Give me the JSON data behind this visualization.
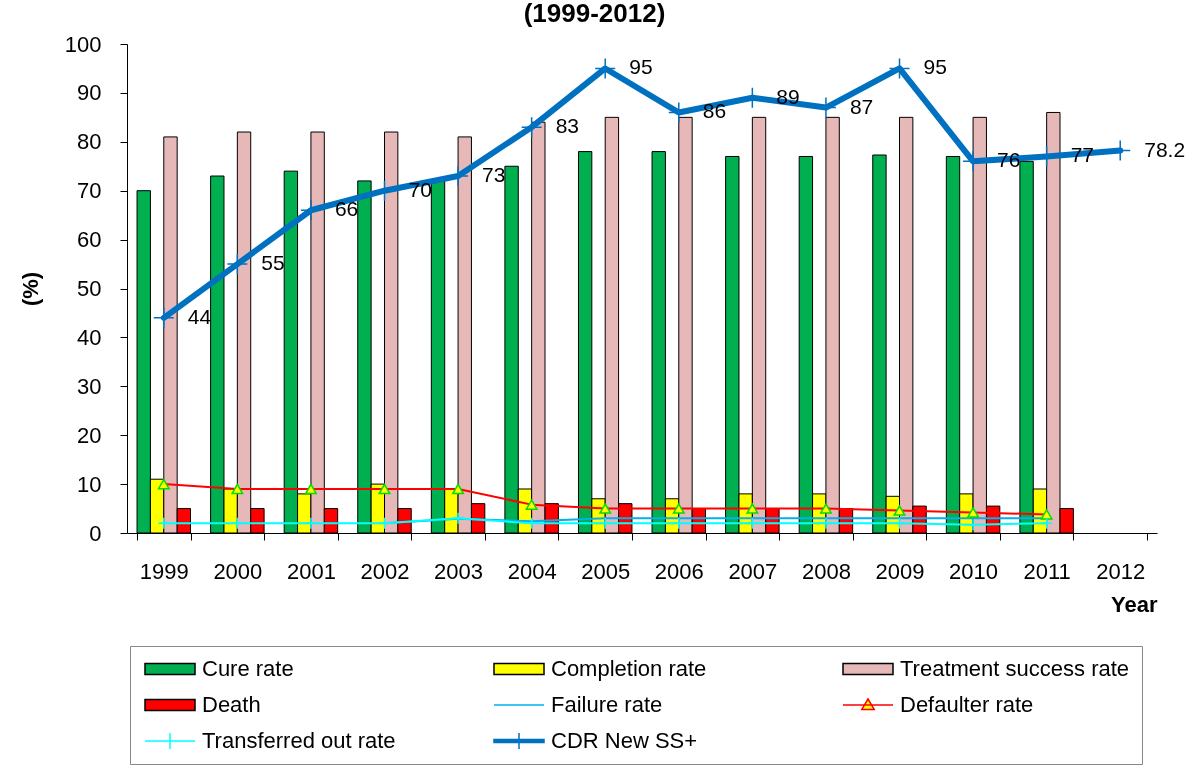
{
  "chart_data": {
    "type": "bar",
    "title": "(1999-2012)",
    "xlabel": "Year",
    "ylabel": "(%)",
    "categories": [
      "1999",
      "2000",
      "2001",
      "2002",
      "2003",
      "2004",
      "2005",
      "2006",
      "2007",
      "2008",
      "2009",
      "2010",
      "2011",
      "2012"
    ],
    "ylim": [
      0,
      100
    ],
    "yticks": [
      0,
      10,
      20,
      30,
      40,
      50,
      60,
      70,
      80,
      90,
      100
    ],
    "legend": "bottom",
    "series": [
      {
        "name": "Cure rate",
        "color": "#00b050",
        "values": [
          70,
          73,
          74,
          72,
          72,
          75,
          78,
          78,
          77,
          77,
          77.3,
          77,
          76,
          null
        ]
      },
      {
        "name": "Completion rate",
        "color": "#ffff00",
        "values": [
          11,
          9,
          8,
          10,
          9,
          9,
          7,
          7,
          8,
          8,
          7.5,
          8,
          9,
          null
        ]
      },
      {
        "name": "Treatment success rate",
        "color": "#e6b9b8",
        "values": [
          81,
          82,
          82,
          82,
          81,
          84,
          85,
          85,
          85,
          85,
          85,
          85,
          86,
          null
        ]
      },
      {
        "name": "Death",
        "color": "#ff0000",
        "values": [
          5,
          5,
          5,
          5,
          6,
          6,
          6,
          5,
          5,
          5,
          5.5,
          5.5,
          5,
          null
        ]
      },
      {
        "name": "Failure rate",
        "type": "line",
        "color": "#00b0f0",
        "marker": "none",
        "values": [
          null,
          null,
          null,
          2,
          2.9,
          2.4,
          3,
          3,
          3,
          3,
          3,
          3,
          3,
          null
        ]
      },
      {
        "name": "Defaulter rate",
        "type": "line",
        "color": "#ff0000",
        "marker": "triangle",
        "values": [
          10,
          9,
          9,
          9,
          9,
          5.8,
          5,
          5,
          5,
          5,
          4.6,
          4.2,
          3.8,
          null
        ]
      },
      {
        "name": "Transferred out rate",
        "type": "line",
        "color": "#00ffff",
        "marker": "cross",
        "values": [
          2,
          2,
          2,
          2,
          3,
          2,
          2,
          2,
          2,
          2,
          2,
          1.7,
          2,
          null
        ]
      },
      {
        "name": "CDR New SS+",
        "type": "line",
        "color": "#0070c0",
        "marker": "cross",
        "values": [
          44,
          55,
          66,
          70,
          73,
          83,
          95,
          86,
          89,
          87,
          95,
          76,
          77,
          78.2
        ],
        "value_labels": [
          "44",
          "55",
          "66",
          "70",
          "73",
          "83",
          "95",
          "86",
          "89",
          "87",
          "95",
          "76",
          "77",
          "78.2"
        ]
      }
    ]
  }
}
